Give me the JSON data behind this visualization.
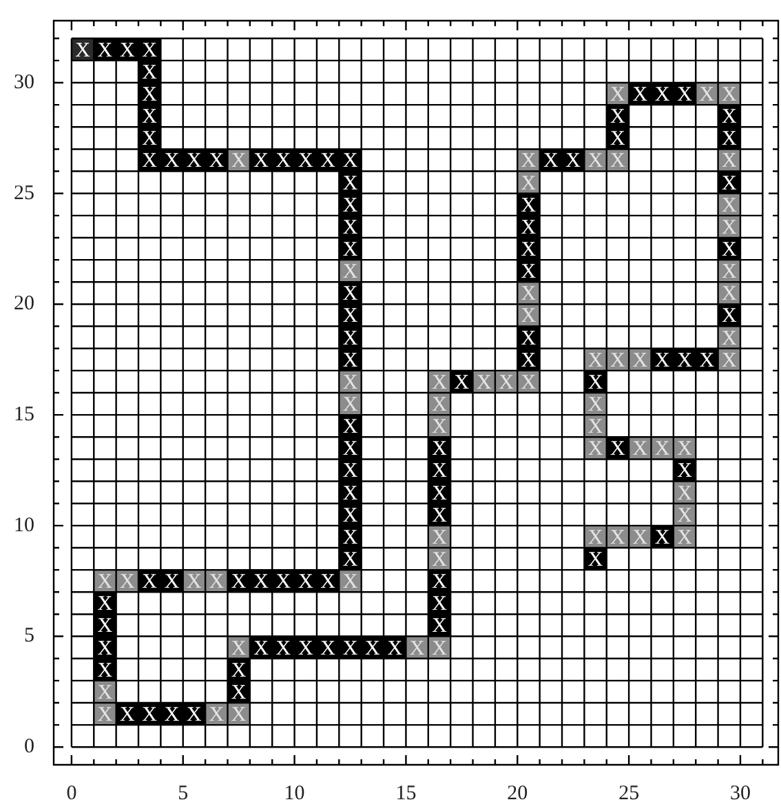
{
  "chart_data": {
    "type": "scatter",
    "marker": "square",
    "grid": true,
    "xlim": [
      -0.8,
      31.7
    ],
    "ylim": [
      -0.8,
      32.8
    ],
    "xticks": [
      0,
      {
        "value": 1,
        "label": null
      },
      {
        "value": 2,
        "label": null
      },
      {
        "value": 3,
        "label": null
      },
      {
        "value": 4,
        "label": null
      },
      5,
      {
        "value": 6,
        "label": null
      },
      {
        "value": 7,
        "label": null
      },
      {
        "value": 8,
        "label": null
      },
      {
        "value": 9,
        "label": null
      },
      10,
      {
        "value": 11,
        "label": null
      },
      {
        "value": 12,
        "label": null
      },
      {
        "value": 13,
        "label": null
      },
      {
        "value": 14,
        "label": null
      },
      15,
      {
        "value": 16,
        "label": null
      },
      {
        "value": 17,
        "label": null
      },
      {
        "value": 18,
        "label": null
      },
      {
        "value": 19,
        "label": null
      },
      20,
      {
        "value": 21,
        "label": null
      },
      {
        "value": 22,
        "label": null
      },
      {
        "value": 23,
        "label": null
      },
      {
        "value": 24,
        "label": null
      },
      25,
      {
        "value": 26,
        "label": null
      },
      {
        "value": 27,
        "label": null
      },
      {
        "value": 28,
        "label": null
      },
      {
        "value": 29,
        "label": null
      },
      30,
      {
        "value": 31,
        "label": null
      }
    ],
    "yticks": [
      0,
      {
        "value": 1,
        "label": null
      },
      {
        "value": 2,
        "label": null
      },
      {
        "value": 3,
        "label": null
      },
      {
        "value": 4,
        "label": null
      },
      5,
      {
        "value": 6,
        "label": null
      },
      {
        "value": 7,
        "label": null
      },
      {
        "value": 8,
        "label": null
      },
      {
        "value": 9,
        "label": null
      },
      10,
      {
        "value": 11,
        "label": null
      },
      {
        "value": 12,
        "label": null
      },
      {
        "value": 13,
        "label": null
      },
      {
        "value": 14,
        "label": null
      },
      15,
      {
        "value": 16,
        "label": null
      },
      {
        "value": 17,
        "label": null
      },
      {
        "value": 18,
        "label": null
      },
      {
        "value": 19,
        "label": null
      },
      20,
      {
        "value": 21,
        "label": null
      },
      {
        "value": 22,
        "label": null
      },
      {
        "value": 23,
        "label": null
      },
      {
        "value": 24,
        "label": null
      },
      25,
      {
        "value": 26,
        "label": null
      },
      {
        "value": 27,
        "label": null
      },
      {
        "value": 28,
        "label": null
      },
      {
        "value": 29,
        "label": null
      },
      30,
      {
        "value": 31,
        "label": null
      },
      {
        "value": 32,
        "label": null
      }
    ],
    "x": [
      0.5,
      1.5,
      2.5,
      3.5,
      3.5,
      3.5,
      3.5,
      3.5,
      3.5,
      4.5,
      5.5,
      6.5,
      7.5,
      8.5,
      9.5,
      10.5,
      11.5,
      12.5,
      12.5,
      12.5,
      12.5,
      12.5,
      12.5,
      12.5,
      12.5,
      12.5,
      12.5,
      12.5,
      12.5,
      12.5,
      12.5,
      12.5,
      12.5,
      12.5,
      12.5,
      12.5,
      12.5,
      11.5,
      10.5,
      9.5,
      8.5,
      7.5,
      6.5,
      5.5,
      4.5,
      3.5,
      2.5,
      1.5,
      1.5,
      1.5,
      1.5,
      1.5,
      1.5,
      1.5,
      2.5,
      3.5,
      4.5,
      5.5,
      6.5,
      7.5,
      7.5,
      7.5,
      7.5,
      8.5,
      9.5,
      10.5,
      11.5,
      12.5,
      13.5,
      14.5,
      15.5,
      16.5,
      16.5,
      16.5,
      16.5,
      16.5,
      16.5,
      16.5,
      16.5,
      16.5,
      16.5,
      16.5,
      16.5,
      16.5,
      17.5,
      18.5,
      19.5,
      20.5,
      20.5,
      20.5,
      20.5,
      20.5,
      20.5,
      20.5,
      20.5,
      20.5,
      20.5,
      20.5,
      21.5,
      22.5,
      23.5,
      24.5,
      24.5,
      24.5,
      24.5,
      25.5,
      26.5,
      27.5,
      28.5,
      29.5,
      29.5,
      29.5,
      29.5,
      29.5,
      29.5,
      29.5,
      29.5,
      29.5,
      29.5,
      29.5,
      29.5,
      29.5,
      28.5,
      27.5,
      26.5,
      25.5,
      24.5,
      23.5,
      23.5,
      23.5,
      23.5,
      23.5,
      24.5,
      25.5,
      26.5,
      27.5,
      27.5,
      27.5,
      27.5,
      27.5,
      26.5,
      25.5,
      24.5,
      23.5,
      23.5
    ],
    "values": [
      31.5,
      31.5,
      31.5,
      31.5,
      30.5,
      29.5,
      28.5,
      27.5,
      26.5,
      26.5,
      26.5,
      26.5,
      26.5,
      26.5,
      26.5,
      26.5,
      26.5,
      26.5,
      25.5,
      24.5,
      23.5,
      22.5,
      21.5,
      20.5,
      19.5,
      18.5,
      17.5,
      16.5,
      15.5,
      14.5,
      13.5,
      12.5,
      11.5,
      10.5,
      9.5,
      8.5,
      7.5,
      7.5,
      7.5,
      7.5,
      7.5,
      7.5,
      7.5,
      7.5,
      7.5,
      7.5,
      7.5,
      7.5,
      6.5,
      5.5,
      4.5,
      3.5,
      2.5,
      1.5,
      1.5,
      1.5,
      1.5,
      1.5,
      1.5,
      1.5,
      2.5,
      3.5,
      4.5,
      4.5,
      4.5,
      4.5,
      4.5,
      4.5,
      4.5,
      4.5,
      4.5,
      4.5,
      5.5,
      6.5,
      7.5,
      8.5,
      9.5,
      10.5,
      11.5,
      12.5,
      13.5,
      14.5,
      15.5,
      16.5,
      16.5,
      16.5,
      16.5,
      16.5,
      17.5,
      18.5,
      19.5,
      20.5,
      21.5,
      22.5,
      23.5,
      24.5,
      25.5,
      26.5,
      26.5,
      26.5,
      26.5,
      26.5,
      27.5,
      28.5,
      29.5,
      29.5,
      29.5,
      29.5,
      29.5,
      29.5,
      28.5,
      27.5,
      26.5,
      25.5,
      24.5,
      23.5,
      22.5,
      21.5,
      20.5,
      19.5,
      18.5,
      17.5,
      17.5,
      17.5,
      17.5,
      17.5,
      17.5,
      17.5,
      16.5,
      15.5,
      14.5,
      13.5,
      13.5,
      13.5,
      13.5,
      13.5,
      12.5,
      11.5,
      10.5,
      9.5,
      9.5,
      9.5,
      9.5,
      9.5,
      8.5
    ],
    "colors": [
      "#2b2b2b",
      "#000000",
      "#000000",
      "#000000",
      "#000000",
      "#000000",
      "#000000",
      "#000000",
      "#000000",
      "#000000",
      "#000000",
      "#000000",
      "#8c8c8c",
      "#000000",
      "#000000",
      "#000000",
      "#000000",
      "#000000",
      "#000000",
      "#000000",
      "#000000",
      "#000000",
      "#8c8c8c",
      "#000000",
      "#000000",
      "#000000",
      "#000000",
      "#8c8c8c",
      "#8c8c8c",
      "#000000",
      "#000000",
      "#000000",
      "#000000",
      "#000000",
      "#000000",
      "#000000",
      "#8c8c8c",
      "#000000",
      "#000000",
      "#000000",
      "#000000",
      "#000000",
      "#8c8c8c",
      "#8c8c8c",
      "#000000",
      "#000000",
      "#8c8c8c",
      "#8c8c8c",
      "#000000",
      "#000000",
      "#000000",
      "#000000",
      "#8c8c8c",
      "#8c8c8c",
      "#000000",
      "#000000",
      "#000000",
      "#000000",
      "#8c8c8c",
      "#8c8c8c",
      "#000000",
      "#000000",
      "#8c8c8c",
      "#000000",
      "#000000",
      "#000000",
      "#000000",
      "#000000",
      "#000000",
      "#000000",
      "#8c8c8c",
      "#8c8c8c",
      "#000000",
      "#000000",
      "#000000",
      "#8c8c8c",
      "#8c8c8c",
      "#000000",
      "#000000",
      "#000000",
      "#000000",
      "#8c8c8c",
      "#8c8c8c",
      "#8c8c8c",
      "#000000",
      "#8c8c8c",
      "#8c8c8c",
      "#8c8c8c",
      "#000000",
      "#000000",
      "#8c8c8c",
      "#8c8c8c",
      "#000000",
      "#000000",
      "#000000",
      "#000000",
      "#8c8c8c",
      "#8c8c8c",
      "#000000",
      "#000000",
      "#8c8c8c",
      "#8c8c8c",
      "#000000",
      "#000000",
      "#8c8c8c",
      "#000000",
      "#000000",
      "#000000",
      "#8c8c8c",
      "#8c8c8c",
      "#000000",
      "#000000",
      "#8c8c8c",
      "#000000",
      "#8c8c8c",
      "#8c8c8c",
      "#000000",
      "#8c8c8c",
      "#8c8c8c",
      "#000000",
      "#8c8c8c",
      "#8c8c8c",
      "#000000",
      "#000000",
      "#000000",
      "#8c8c8c",
      "#8c8c8c",
      "#8c8c8c",
      "#000000",
      "#8c8c8c",
      "#8c8c8c",
      "#8c8c8c",
      "#000000",
      "#8c8c8c",
      "#8c8c8c",
      "#8c8c8c",
      "#000000",
      "#8c8c8c",
      "#8c8c8c",
      "#8c8c8c",
      "#000000",
      "#8c8c8c",
      "#8c8c8c",
      "#8c8c8c",
      "#000000"
    ],
    "value_labels": [
      "X",
      "X",
      "X",
      "X",
      "X",
      "X",
      "X",
      "X",
      "X",
      "X",
      "X",
      "X",
      "X",
      "X",
      "X",
      "X",
      "X",
      "X",
      "X",
      "X",
      "X",
      "X",
      "X",
      "X",
      "X",
      "X",
      "X",
      "X",
      "X",
      "X",
      "X",
      "X",
      "X",
      "X",
      "X",
      "X",
      "X",
      "X",
      "X",
      "X",
      "X",
      "X",
      "X",
      "X",
      "X",
      "X",
      "X",
      "X",
      "X",
      "X",
      "X",
      "X",
      "X",
      "X",
      "X",
      "X",
      "X",
      "X",
      "X",
      "X",
      "X",
      "X",
      "X",
      "X",
      "X",
      "X",
      "X",
      "X",
      "X",
      "X",
      "X",
      "X",
      "X",
      "X",
      "X",
      "X",
      "X",
      "X",
      "X",
      "X",
      "X",
      "X",
      "X",
      "X",
      "X",
      "X",
      "X",
      "X",
      "X",
      "X",
      "X",
      "X",
      "X",
      "X",
      "X",
      "X",
      "X",
      "X",
      "X",
      "X",
      "X",
      "X",
      "X",
      "X",
      "X",
      "X",
      "X",
      "X",
      "X",
      "X",
      "X",
      "X",
      "X",
      "X",
      "X",
      "X",
      "X",
      "X",
      "X",
      "X",
      "X",
      "X",
      "X",
      "X",
      "X",
      "X",
      "X",
      "X",
      "X",
      "X",
      "X",
      "X",
      "X",
      "X",
      "X",
      "X",
      "X",
      "X",
      "X",
      "X",
      "X",
      "X",
      "X",
      "X",
      "X"
    ]
  }
}
